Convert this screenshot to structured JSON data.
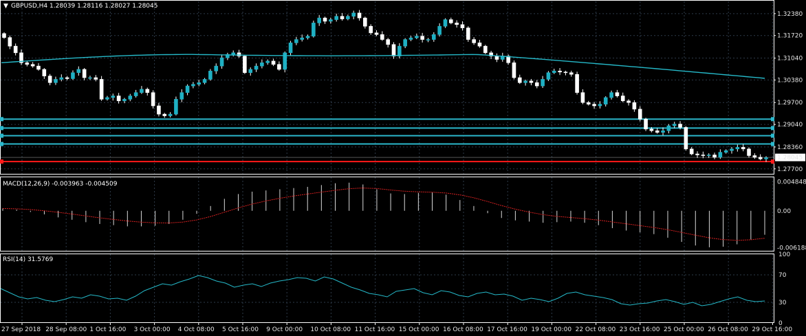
{
  "window": {
    "symbol_header": "GBPUSD,H4  1.28039 1.28116 1.28027 1.28045",
    "arrow_icon": "triangle-down-icon"
  },
  "colors": {
    "background": "#000000",
    "grid": "#2e3b4a",
    "axis": "#ffffff",
    "bull_fill": "#000000",
    "bull_outline": "#ffffff",
    "bear_fill": "#ffffff",
    "bear_outline": "#ffffff",
    "candle_fill_bull": "#1fb0c3",
    "ma": "#25b9c9",
    "hline": "#2bb8cc",
    "red_line": "#ff1a1a",
    "macd_hist": "#d9d9d9",
    "macd_signal": "#d42020",
    "rsi": "#25b9c9",
    "price_box_bg": "#ffffff",
    "price_box_text": "#000000"
  },
  "price_axis": {
    "ticks": [
      "1.32380",
      "1.31720",
      "1.31040",
      "1.30380",
      "1.29700",
      "1.29040",
      "1.28360",
      "1.27700"
    ],
    "current_price": "1.28045"
  },
  "time_axis": {
    "labels": [
      "27 Sep 2018",
      "28 Sep 08:00",
      "1 Oct 16:00",
      "3 Oct 00:00",
      "4 Oct 08:00",
      "5 Oct 16:00",
      "9 Oct 00:00",
      "10 Oct 08:00",
      "11 Oct 16:00",
      "15 Oct 00:00",
      "16 Oct 08:00",
      "17 Oct 16:00",
      "19 Oct 00:00",
      "22 Oct 08:00",
      "23 Oct 16:00",
      "25 Oct 00:00",
      "26 Oct 08:00",
      "29 Oct 16:00"
    ]
  },
  "macd": {
    "header": "MACD(12,26,9) -0.003963 -0.004509",
    "ticks": [
      "0.004848",
      "0.00",
      "-0.006188"
    ]
  },
  "rsi": {
    "header": "RSI(14) 31.5769",
    "ticks": [
      "100",
      "70",
      "30",
      "0"
    ]
  },
  "chart_data": [
    {
      "type": "candlestick",
      "title": "GBPUSD,H4",
      "ylim": [
        1.2755,
        1.3275
      ],
      "close_series": [
        1.3166,
        1.314,
        1.312,
        1.309,
        1.3085,
        1.308,
        1.307,
        1.305,
        1.303,
        1.304,
        1.3045,
        1.3042,
        1.306,
        1.307,
        1.3045,
        1.3045,
        1.304,
        1.298,
        1.2985,
        1.299,
        1.2975,
        1.298,
        1.299,
        1.3,
        1.301,
        1.3,
        1.296,
        1.2935,
        1.293,
        1.2935,
        1.298,
        1.3,
        1.302,
        1.3025,
        1.303,
        1.304,
        1.3065,
        1.308,
        1.3105,
        1.3115,
        1.312,
        1.311,
        1.306,
        1.307,
        1.308,
        1.309,
        1.3095,
        1.3085,
        1.307,
        1.312,
        1.315,
        1.316,
        1.3165,
        1.317,
        1.321,
        1.3225,
        1.3215,
        1.322,
        1.323,
        1.3222,
        1.323,
        1.324,
        1.3225,
        1.32,
        1.318,
        1.3175,
        1.316,
        1.3145,
        1.311,
        1.314,
        1.316,
        1.3165,
        1.317,
        1.316,
        1.316,
        1.3175,
        1.32,
        1.322,
        1.321,
        1.3205,
        1.3195,
        1.316,
        1.315,
        1.314,
        1.312,
        1.311,
        1.31,
        1.311,
        1.309,
        1.3045,
        1.303,
        1.3035,
        1.303,
        1.302,
        1.304,
        1.306,
        1.3065,
        1.3062,
        1.306,
        1.3055,
        1.3,
        1.297,
        1.2965,
        1.296,
        1.2965,
        1.2985,
        1.3,
        1.299,
        1.2975,
        1.297,
        1.295,
        1.292,
        1.289,
        1.2885,
        1.288,
        1.2885,
        1.29,
        1.2905,
        1.2895,
        1.283,
        1.2815,
        1.2812,
        1.281,
        1.2812,
        1.2805,
        1.282,
        1.2825,
        1.283,
        1.2835,
        1.283,
        1.281,
        1.2805,
        1.28,
        1.2804
      ],
      "hlines": [
        1.292,
        1.2893,
        1.287,
        1.2845
      ],
      "red_hline": 1.2792,
      "moving_average": {
        "start": 1.309,
        "peak": 1.3115,
        "end": 1.3043
      }
    },
    {
      "type": "bar",
      "title": "MACD(12,26,9)",
      "ylim": [
        -0.0068,
        0.0056
      ],
      "values": [
        0.0004,
        0.0002,
        -0.0002,
        -0.0006,
        -0.0011,
        -0.0015,
        -0.0019,
        -0.0022,
        -0.0024,
        -0.0026,
        -0.0026,
        -0.0025,
        -0.0022,
        -0.0015,
        -0.0005,
        0.0008,
        0.002,
        0.0028,
        0.0032,
        0.0034,
        0.0036,
        0.0038,
        0.004,
        0.0043,
        0.0046,
        0.0047,
        0.0044,
        0.0036,
        0.0029,
        0.0028,
        0.003,
        0.0031,
        0.0027,
        0.0018,
        0.0008,
        -0.0004,
        -0.0012,
        -0.0016,
        -0.0018,
        -0.002,
        -0.0019,
        -0.0018,
        -0.002,
        -0.0024,
        -0.0029,
        -0.0033,
        -0.0036,
        -0.0039,
        -0.0045,
        -0.0052,
        -0.0058,
        -0.0061,
        -0.006,
        -0.0056,
        -0.0048,
        -0.004
      ]
    },
    {
      "type": "line",
      "title": "RSI(14)",
      "ylim": [
        0,
        100
      ],
      "values": [
        50,
        44,
        38,
        35,
        37,
        33,
        31,
        34,
        38,
        36,
        41,
        39,
        35,
        36,
        33,
        39,
        47,
        52,
        57,
        55,
        60,
        64,
        69,
        66,
        61,
        58,
        52,
        55,
        57,
        53,
        58,
        61,
        63,
        66,
        65,
        61,
        67,
        64,
        58,
        52,
        48,
        43,
        41,
        38,
        46,
        48,
        50,
        44,
        41,
        47,
        45,
        40,
        38,
        43,
        45,
        41,
        42,
        39,
        33,
        36,
        34,
        31,
        36,
        43,
        45,
        41,
        39,
        37,
        34,
        28,
        26,
        28,
        29,
        32,
        34,
        31,
        27,
        30,
        25,
        27,
        31,
        35,
        38,
        33,
        31,
        32
      ]
    }
  ]
}
